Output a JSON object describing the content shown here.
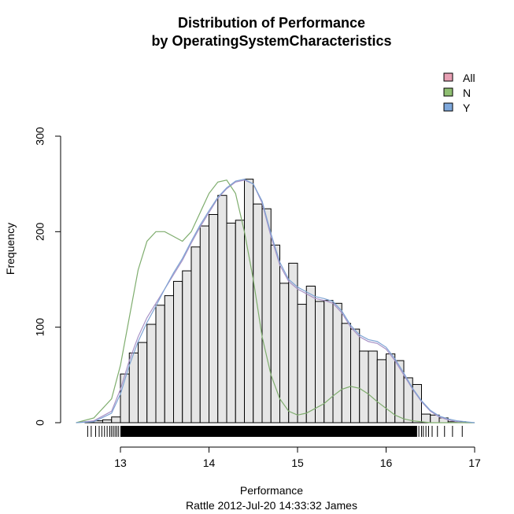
{
  "chart_data": {
    "type": "bar",
    "title": "Distribution of Performance",
    "subtitle": "by OperatingSystemCharacteristics",
    "xlabel": "Performance",
    "ylabel": "Frequency",
    "footer": "Rattle 2012-Jul-20 14:33:32 James",
    "xlim": [
      12.5,
      17.0
    ],
    "ylim": [
      0,
      300
    ],
    "x_ticks": [
      "13",
      "14",
      "15",
      "16",
      "17"
    ],
    "y_ticks": [
      "0",
      "100",
      "200",
      "300"
    ],
    "bin_width": 0.1,
    "bins_start": [
      12.6,
      12.7,
      12.8,
      12.9,
      13.0,
      13.1,
      13.2,
      13.3,
      13.4,
      13.5,
      13.6,
      13.7,
      13.8,
      13.9,
      14.0,
      14.1,
      14.2,
      14.3,
      14.4,
      14.5,
      14.6,
      14.7,
      14.8,
      14.9,
      15.0,
      15.1,
      15.2,
      15.3,
      15.4,
      15.5,
      15.6,
      15.7,
      15.8,
      15.9,
      16.0,
      16.1,
      16.2,
      16.3,
      16.4,
      16.5,
      16.6,
      16.7,
      16.8
    ],
    "values": [
      1,
      2,
      3,
      6,
      51,
      73,
      84,
      103,
      123,
      133,
      148,
      159,
      184,
      206,
      218,
      238,
      209,
      212,
      255,
      229,
      224,
      186,
      146,
      167,
      124,
      143,
      127,
      128,
      125,
      104,
      98,
      75,
      75,
      66,
      72,
      65,
      47,
      40,
      9,
      8,
      5,
      1,
      1
    ],
    "legend": {
      "position": "top-right",
      "entries": [
        "All",
        "N",
        "Y"
      ]
    },
    "series": [
      {
        "name": "All",
        "color": "#a892c6",
        "x": [
          12.5,
          12.7,
          12.9,
          13.0,
          13.1,
          13.2,
          13.3,
          13.4,
          13.5,
          13.6,
          13.7,
          13.8,
          13.9,
          14.0,
          14.1,
          14.2,
          14.3,
          14.4,
          14.5,
          14.6,
          14.7,
          14.8,
          14.9,
          15.0,
          15.1,
          15.2,
          15.3,
          15.4,
          15.5,
          15.6,
          15.7,
          15.8,
          15.9,
          16.0,
          16.1,
          16.2,
          16.3,
          16.4,
          16.5,
          16.6,
          16.7,
          16.8,
          16.9,
          17.0
        ],
        "y": [
          0,
          2,
          12,
          35,
          65,
          90,
          110,
          125,
          140,
          155,
          170,
          188,
          205,
          220,
          235,
          245,
          252,
          254,
          250,
          230,
          195,
          165,
          148,
          140,
          135,
          130,
          128,
          125,
          115,
          100,
          90,
          85,
          83,
          77,
          65,
          50,
          35,
          22,
          12,
          6,
          3,
          1,
          0,
          0
        ]
      },
      {
        "name": "N",
        "color": "#7fad6e",
        "x": [
          12.5,
          12.7,
          12.9,
          13.0,
          13.1,
          13.2,
          13.3,
          13.4,
          13.5,
          13.6,
          13.7,
          13.8,
          13.9,
          14.0,
          14.1,
          14.2,
          14.3,
          14.4,
          14.5,
          14.6,
          14.7,
          14.8,
          14.9,
          15.0,
          15.1,
          15.2,
          15.3,
          15.4,
          15.5,
          15.6,
          15.7,
          15.8,
          15.9,
          16.0,
          16.1,
          16.2,
          16.3,
          16.4,
          16.5,
          16.6,
          16.7,
          16.8,
          16.9,
          17.0
        ],
        "y": [
          0,
          5,
          25,
          60,
          110,
          160,
          190,
          200,
          200,
          195,
          190,
          200,
          220,
          240,
          252,
          254,
          240,
          200,
          150,
          90,
          50,
          25,
          12,
          8,
          10,
          15,
          20,
          28,
          35,
          38,
          36,
          30,
          22,
          15,
          8,
          4,
          2,
          1,
          0,
          0,
          0,
          0,
          0,
          0
        ]
      },
      {
        "name": "Y",
        "color": "#7ea4d4",
        "x": [
          12.5,
          12.7,
          12.9,
          13.0,
          13.1,
          13.2,
          13.3,
          13.4,
          13.5,
          13.6,
          13.7,
          13.8,
          13.9,
          14.0,
          14.1,
          14.2,
          14.3,
          14.4,
          14.5,
          14.6,
          14.7,
          14.8,
          14.9,
          15.0,
          15.1,
          15.2,
          15.3,
          15.4,
          15.5,
          15.6,
          15.7,
          15.8,
          15.9,
          16.0,
          16.1,
          16.2,
          16.3,
          16.4,
          16.5,
          16.6,
          16.7,
          16.8,
          16.9,
          17.0
        ],
        "y": [
          0,
          1,
          10,
          30,
          60,
          85,
          105,
          122,
          140,
          157,
          172,
          190,
          207,
          222,
          236,
          246,
          253,
          255,
          250,
          232,
          198,
          168,
          150,
          142,
          137,
          132,
          130,
          127,
          117,
          102,
          92,
          87,
          85,
          79,
          67,
          52,
          36,
          23,
          13,
          7,
          4,
          2,
          1,
          0
        ]
      }
    ],
    "rug": {
      "sparse_left": [
        12.63,
        12.67,
        12.72,
        12.76,
        12.79,
        12.82,
        12.85,
        12.88,
        12.9,
        12.92,
        12.94,
        12.96,
        12.98
      ],
      "dense_range": [
        13.0,
        16.35
      ],
      "sparse_right": [
        16.37,
        16.4,
        16.42,
        16.45,
        16.48,
        16.52,
        16.58,
        16.66,
        16.75,
        16.86
      ]
    }
  }
}
